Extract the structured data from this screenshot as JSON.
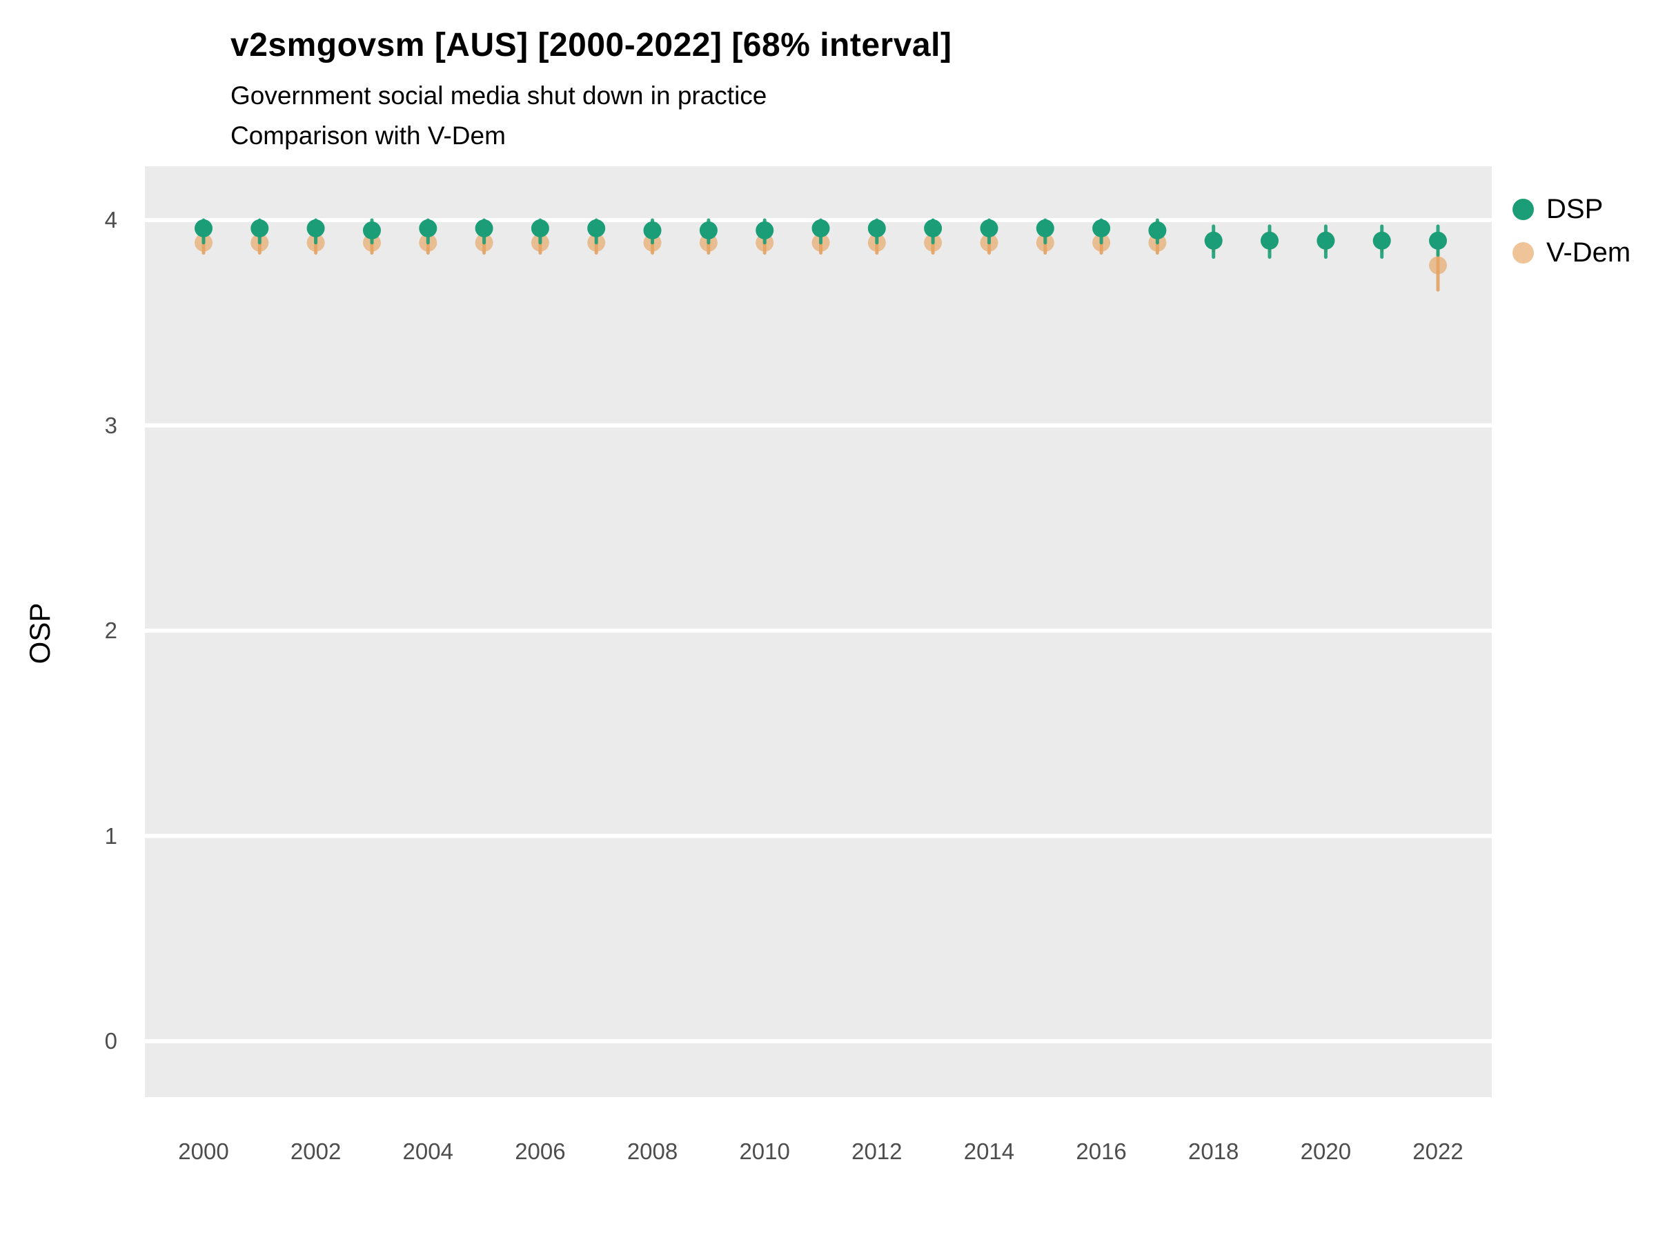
{
  "header": {
    "title": "v2smgovsm [AUS] [2000-2022] [68% interval]",
    "subtitle1": "Government social media shut down in practice",
    "subtitle2": "Comparison with V-Dem"
  },
  "chart_data": {
    "type": "scatter",
    "title": "v2smgovsm [AUS] [2000-2022] [68% interval]",
    "subtitle": "Government social media shut down in practice",
    "subtitle2": "Comparison with V-Dem",
    "xlabel": "",
    "ylabel": "OSP",
    "interval": "68%",
    "country": "AUS",
    "grid": "horizontal white major gridlines on gray panel",
    "legend_position": "right",
    "panel_background": "#EBEBEB",
    "gridline_color": "#FFFFFF",
    "ylim": [
      -0.27,
      4.27
    ],
    "xlim": [
      1999,
      2023
    ],
    "y_ticks": [
      0,
      1,
      2,
      3,
      4
    ],
    "x_ticks": [
      2000,
      2002,
      2004,
      2006,
      2008,
      2010,
      2012,
      2014,
      2016,
      2018,
      2020,
      2022
    ],
    "x": [
      2000,
      2001,
      2002,
      2003,
      2004,
      2005,
      2006,
      2007,
      2008,
      2009,
      2010,
      2011,
      2012,
      2013,
      2014,
      2015,
      2016,
      2017,
      2018,
      2019,
      2020,
      2021,
      2022
    ],
    "series": [
      {
        "name": "DSP",
        "point_color": "#1B9E77",
        "point_opacity": 1,
        "bar_color": "#1B9E77",
        "bar_opacity": 0.9,
        "point_radius": 13,
        "values": [
          3.96,
          3.96,
          3.96,
          3.95,
          3.96,
          3.96,
          3.96,
          3.96,
          3.95,
          3.95,
          3.95,
          3.96,
          3.96,
          3.96,
          3.96,
          3.96,
          3.96,
          3.95,
          3.9,
          3.9,
          3.9,
          3.9,
          3.9
        ],
        "lo": [
          3.89,
          3.89,
          3.89,
          3.89,
          3.89,
          3.89,
          3.89,
          3.89,
          3.89,
          3.89,
          3.89,
          3.89,
          3.89,
          3.89,
          3.89,
          3.89,
          3.89,
          3.89,
          3.82,
          3.82,
          3.82,
          3.82,
          3.83
        ],
        "hi": [
          4.0,
          4.0,
          4.0,
          4.0,
          4.0,
          4.0,
          4.0,
          4.0,
          4.0,
          4.0,
          4.0,
          4.0,
          4.0,
          4.0,
          4.0,
          4.0,
          4.0,
          4.0,
          3.97,
          3.97,
          3.97,
          3.97,
          3.97
        ]
      },
      {
        "name": "V-Dem",
        "point_color": "#E8A462",
        "point_opacity": 0.65,
        "bar_color": "#DE8F3F",
        "bar_opacity": 0.7,
        "point_radius": 13,
        "values": [
          3.89,
          3.89,
          3.89,
          3.89,
          3.89,
          3.89,
          3.89,
          3.89,
          3.89,
          3.89,
          3.89,
          3.89,
          3.89,
          3.89,
          3.89,
          3.89,
          3.89,
          3.89,
          3.9,
          3.9,
          3.9,
          3.9,
          3.78
        ],
        "lo": [
          3.84,
          3.84,
          3.84,
          3.84,
          3.84,
          3.84,
          3.84,
          3.84,
          3.84,
          3.84,
          3.84,
          3.84,
          3.84,
          3.84,
          3.84,
          3.84,
          3.84,
          3.84,
          3.85,
          3.85,
          3.85,
          3.85,
          3.66
        ],
        "hi": [
          3.93,
          3.93,
          3.93,
          3.93,
          3.93,
          3.93,
          3.93,
          3.93,
          3.93,
          3.93,
          3.93,
          3.93,
          3.93,
          3.93,
          3.93,
          3.93,
          3.93,
          3.93,
          3.94,
          3.94,
          3.94,
          3.94,
          3.9
        ]
      }
    ]
  }
}
